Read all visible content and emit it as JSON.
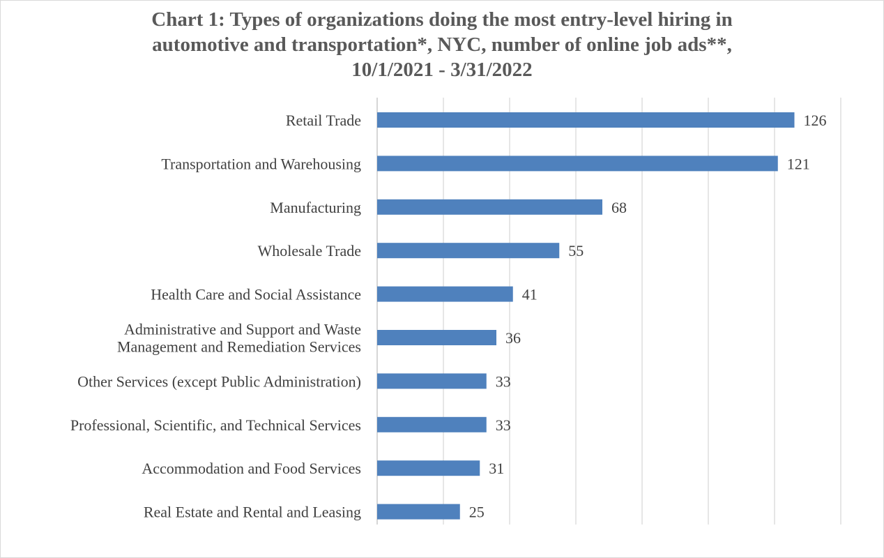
{
  "chart_data": {
    "type": "bar",
    "orientation": "horizontal",
    "title_lines": [
      "Chart 1: Types of organizations doing the most entry-level hiring in",
      "automotive and transportation*, NYC, number of online job ads**,",
      "10/1/2021 - 3/31/2022"
    ],
    "categories": [
      [
        "Retail Trade"
      ],
      [
        "Transportation and Warehousing"
      ],
      [
        "Manufacturing"
      ],
      [
        "Wholesale Trade"
      ],
      [
        "Health Care and Social Assistance"
      ],
      [
        "Administrative and Support and Waste",
        "Management and Remediation Services"
      ],
      [
        "Other Services (except Public Administration)"
      ],
      [
        "Professional, Scientific, and Technical Services"
      ],
      [
        "Accommodation and Food Services"
      ],
      [
        "Real Estate and Rental and Leasing"
      ]
    ],
    "values": [
      126,
      121,
      68,
      55,
      41,
      36,
      33,
      33,
      31,
      25
    ],
    "xlim": [
      0,
      140
    ],
    "gridlines": true,
    "bar_color": "#4f81bd",
    "grid_color": "#d9d9d9"
  }
}
